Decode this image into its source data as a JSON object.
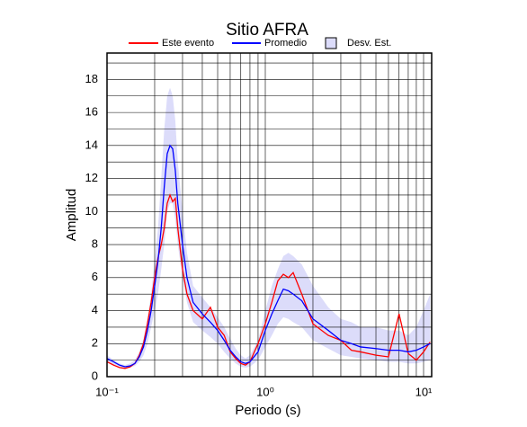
{
  "chart_data": {
    "type": "line",
    "title": "Sitio AFRA",
    "x_label": "Periodo (s)",
    "y_label": "Amplitud",
    "xscale": "log",
    "grid": true,
    "legend": "top",
    "xlim": [
      0.1,
      11.25
    ],
    "ylim": [
      0,
      19.6
    ],
    "xticks": [
      {
        "value": 0.1,
        "label": "10⁻¹"
      },
      {
        "value": 1,
        "label": "10⁰"
      },
      {
        "value": 10,
        "label": "10¹"
      }
    ],
    "xticks_minor": [
      0.2,
      0.3,
      0.4,
      0.5,
      0.6,
      0.7,
      0.8,
      0.9,
      2,
      3,
      4,
      5,
      6,
      7,
      8,
      9
    ],
    "yticks": [
      0,
      2,
      4,
      6,
      8,
      10,
      12,
      14,
      16,
      18
    ],
    "yticks_minor": [
      1,
      3,
      5,
      7,
      9,
      11,
      13,
      15,
      17,
      19
    ],
    "x": [
      0.1,
      0.11,
      0.12,
      0.13,
      0.14,
      0.15,
      0.16,
      0.17,
      0.18,
      0.19,
      0.2,
      0.21,
      0.22,
      0.23,
      0.24,
      0.25,
      0.26,
      0.27,
      0.28,
      0.3,
      0.32,
      0.35,
      0.4,
      0.45,
      0.5,
      0.55,
      0.6,
      0.65,
      0.7,
      0.75,
      0.8,
      0.9,
      1.0,
      1.1,
      1.2,
      1.3,
      1.4,
      1.5,
      1.7,
      2.0,
      2.5,
      3.0,
      3.5,
      4,
      5,
      6,
      7,
      8,
      9,
      10,
      11
    ],
    "band": {
      "name": "Desv. Est.",
      "color": "#dcdcfa",
      "lower": [
        0.9,
        0.75,
        0.6,
        0.5,
        0.55,
        0.65,
        0.9,
        1.3,
        2.0,
        3.0,
        4.0,
        5.0,
        6.5,
        8.0,
        10.0,
        10.5,
        10.5,
        9.5,
        8.0,
        6.0,
        4.5,
        3.3,
        2.8,
        2.4,
        2.0,
        1.5,
        1.1,
        0.8,
        0.6,
        0.55,
        0.6,
        1.0,
        1.8,
        2.5,
        3.2,
        3.6,
        3.5,
        3.3,
        3.0,
        2.2,
        1.7,
        1.3,
        1.2,
        1.1,
        1.0,
        0.9,
        0.9,
        0.8,
        0.8,
        0.9,
        1.0
      ],
      "upper": [
        1.3,
        1.0,
        0.8,
        0.7,
        0.8,
        1.0,
        1.5,
        2.3,
        3.5,
        5.0,
        7.0,
        9.0,
        12.0,
        15.0,
        17.0,
        17.5,
        17.0,
        15.5,
        13.0,
        10.0,
        7.5,
        5.5,
        4.8,
        4.2,
        3.6,
        3.0,
        2.3,
        1.7,
        1.3,
        1.1,
        1.3,
        2.2,
        4.0,
        5.5,
        6.5,
        7.3,
        7.5,
        7.3,
        6.8,
        5.5,
        4.2,
        3.5,
        3.3,
        3.0,
        3.0,
        2.8,
        2.8,
        2.5,
        3.0,
        4.0,
        5.0
      ]
    },
    "series": [
      {
        "name": "Este evento",
        "color": "#ff0000",
        "values": [
          0.9,
          0.7,
          0.55,
          0.5,
          0.6,
          0.8,
          1.3,
          2.0,
          3.2,
          4.5,
          6.0,
          7.2,
          8.0,
          9.0,
          10.5,
          11.0,
          10.6,
          10.8,
          9.0,
          6.5,
          5.0,
          4.0,
          3.5,
          4.2,
          3.0,
          2.5,
          1.5,
          1.1,
          0.8,
          0.7,
          0.9,
          2.0,
          3.2,
          4.5,
          5.8,
          6.2,
          6.0,
          6.3,
          5.0,
          3.2,
          2.5,
          2.2,
          1.6,
          1.5,
          1.3,
          1.2,
          3.8,
          1.4,
          1.0,
          1.5,
          2.1
        ]
      },
      {
        "name": "Promedio",
        "color": "#0000ff",
        "values": [
          1.1,
          0.9,
          0.7,
          0.6,
          0.65,
          0.8,
          1.2,
          1.8,
          2.8,
          4.0,
          5.5,
          7.0,
          9.0,
          11.5,
          13.5,
          14.0,
          13.8,
          12.5,
          10.5,
          8.0,
          6.0,
          4.5,
          3.8,
          3.3,
          2.8,
          2.2,
          1.6,
          1.2,
          0.9,
          0.8,
          0.9,
          1.5,
          2.8,
          3.8,
          4.6,
          5.3,
          5.2,
          5.0,
          4.6,
          3.5,
          2.8,
          2.2,
          2.0,
          1.8,
          1.7,
          1.6,
          1.6,
          1.5,
          1.6,
          1.8,
          2.0
        ]
      }
    ]
  }
}
